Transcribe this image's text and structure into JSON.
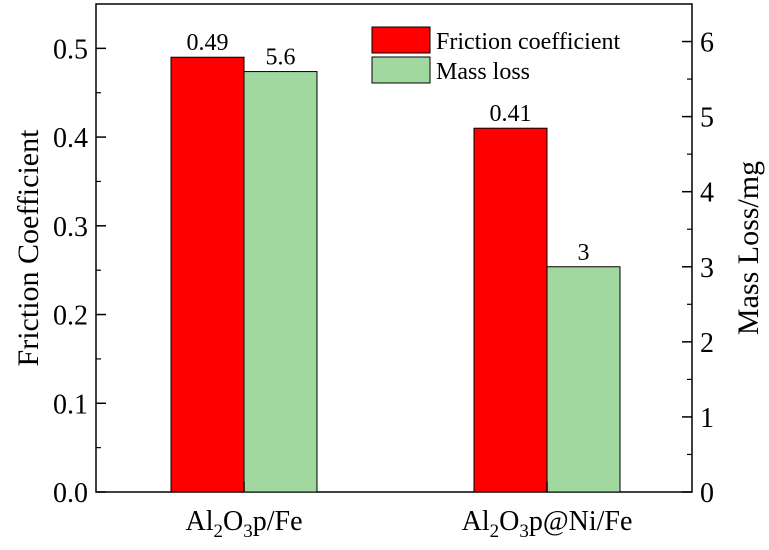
{
  "chart_data": {
    "type": "bar",
    "categories": [
      {
        "base": "Al",
        "sub1": "2",
        "mid": "O",
        "sub2": "3",
        "tail": "p/Fe"
      },
      {
        "base": "Al",
        "sub1": "2",
        "mid": "O",
        "sub2": "3",
        "tail": "p@Ni/Fe"
      }
    ],
    "series": [
      {
        "name": "Friction coefficient",
        "axis": "left",
        "values": [
          0.49,
          0.41
        ],
        "labels": [
          "0.49",
          "0.41"
        ],
        "color": "#ff0000"
      },
      {
        "name": "Mass loss",
        "axis": "right",
        "values": [
          5.6,
          3
        ],
        "labels": [
          "5.6",
          "3"
        ],
        "color": "#a0d8a0"
      }
    ],
    "ylabel_left": "Friction Coefficient",
    "ylabel_right": "Mass Loss/mg",
    "ylim_left": [
      0,
      0.55
    ],
    "ylim_right": [
      0,
      6.5
    ],
    "yticks_left": [
      "0.0",
      "0.1",
      "0.2",
      "0.3",
      "0.4",
      "0.5"
    ],
    "yticks_right": [
      "0",
      "1",
      "2",
      "3",
      "4",
      "5",
      "6"
    ],
    "legend": "top-right",
    "grid": false
  }
}
